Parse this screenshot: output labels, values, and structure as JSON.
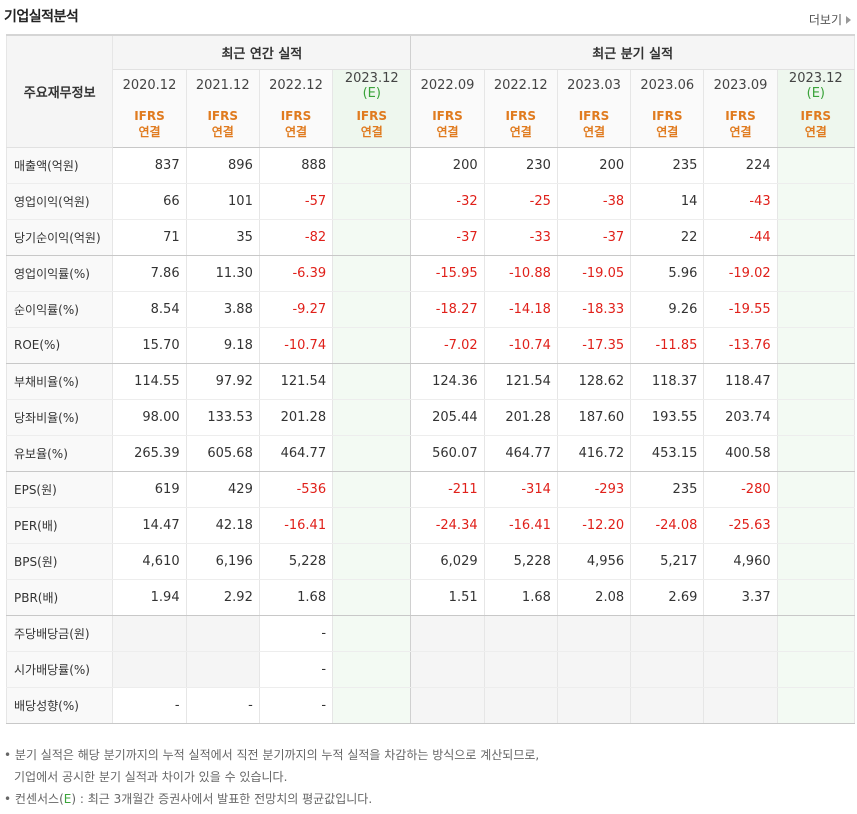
{
  "header": {
    "title": "기업실적분석",
    "more_label": "더보기"
  },
  "table": {
    "row_header": "주요재무정보",
    "annual_group": "최근 연간 실적",
    "quarter_group": "최근 분기 실적",
    "annual_periods": [
      "2020.12",
      "2021.12",
      "2022.12",
      "2023.12"
    ],
    "quarter_periods": [
      "2022.09",
      "2022.12",
      "2023.03",
      "2023.06",
      "2023.09",
      "2023.12"
    ],
    "estimate_mark": "(E)",
    "ifrs_top": "IFRS",
    "ifrs_bottom": "연결",
    "rows": [
      {
        "label": "매출액(억원)",
        "values": [
          "837",
          "896",
          "888",
          "",
          "200",
          "230",
          "200",
          "235",
          "224",
          ""
        ]
      },
      {
        "label": "영업이익(억원)",
        "values": [
          "66",
          "101",
          "-57",
          "",
          "-32",
          "-25",
          "-38",
          "14",
          "-43",
          ""
        ]
      },
      {
        "label": "당기순이익(억원)",
        "values": [
          "71",
          "35",
          "-82",
          "",
          "-37",
          "-33",
          "-37",
          "22",
          "-44",
          ""
        ]
      },
      {
        "label": "영업이익률(%)",
        "values": [
          "7.86",
          "11.30",
          "-6.39",
          "",
          "-15.95",
          "-10.88",
          "-19.05",
          "5.96",
          "-19.02",
          ""
        ]
      },
      {
        "label": "순이익률(%)",
        "values": [
          "8.54",
          "3.88",
          "-9.27",
          "",
          "-18.27",
          "-14.18",
          "-18.33",
          "9.26",
          "-19.55",
          ""
        ]
      },
      {
        "label": "ROE(%)",
        "values": [
          "15.70",
          "9.18",
          "-10.74",
          "",
          "-7.02",
          "-10.74",
          "-17.35",
          "-11.85",
          "-13.76",
          ""
        ]
      },
      {
        "label": "부채비율(%)",
        "values": [
          "114.55",
          "97.92",
          "121.54",
          "",
          "124.36",
          "121.54",
          "128.62",
          "118.37",
          "118.47",
          ""
        ]
      },
      {
        "label": "당좌비율(%)",
        "values": [
          "98.00",
          "133.53",
          "201.28",
          "",
          "205.44",
          "201.28",
          "187.60",
          "193.55",
          "203.74",
          ""
        ]
      },
      {
        "label": "유보율(%)",
        "values": [
          "265.39",
          "605.68",
          "464.77",
          "",
          "560.07",
          "464.77",
          "416.72",
          "453.15",
          "400.58",
          ""
        ]
      },
      {
        "label": "EPS(원)",
        "values": [
          "619",
          "429",
          "-536",
          "",
          "-211",
          "-314",
          "-293",
          "235",
          "-280",
          ""
        ]
      },
      {
        "label": "PER(배)",
        "values": [
          "14.47",
          "42.18",
          "-16.41",
          "",
          "-24.34",
          "-16.41",
          "-12.20",
          "-24.08",
          "-25.63",
          ""
        ]
      },
      {
        "label": "BPS(원)",
        "values": [
          "4,610",
          "6,196",
          "5,228",
          "",
          "6,029",
          "5,228",
          "4,956",
          "5,217",
          "4,960",
          ""
        ]
      },
      {
        "label": "PBR(배)",
        "values": [
          "1.94",
          "2.92",
          "1.68",
          "",
          "1.51",
          "1.68",
          "2.08",
          "2.69",
          "3.37",
          ""
        ]
      },
      {
        "label": "주당배당금(원)",
        "values": [
          "",
          "",
          "-",
          "",
          "",
          "",
          "",
          "",
          "",
          ""
        ]
      },
      {
        "label": "시가배당률(%)",
        "values": [
          "",
          "",
          "-",
          "",
          "",
          "",
          "",
          "",
          "",
          ""
        ]
      },
      {
        "label": "배당성향(%)",
        "values": [
          "-",
          "-",
          "-",
          "",
          "",
          "",
          "",
          "",
          "",
          ""
        ]
      }
    ]
  },
  "notes": {
    "line1": "분기 실적은 해당 분기까지의 누적 실적에서 직전 분기까지의 누적 실적을 차감하는 방식으로 계산되므로,",
    "line2": "기업에서 공시한 분기 실적과 차이가 있을 수 있습니다.",
    "line3_prefix": "컨센서스(",
    "line3_e": "E",
    "line3_suffix": ") : 최근 3개월간 증권사에서 발표한 전망치의 평균값입니다."
  },
  "colors": {
    "negative": "#e0201a",
    "ifrs": "#e07b1f",
    "estimate_bg": "#f3faf3",
    "estimate_text": "#3aa33a"
  }
}
